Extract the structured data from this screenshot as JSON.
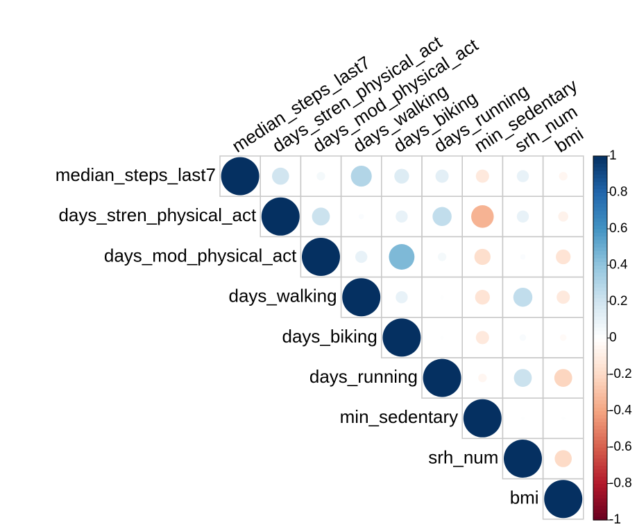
{
  "chart_data": {
    "type": "corrplot",
    "variables": [
      "median_steps_last7",
      "days_stren_physical_act",
      "days_mod_physical_act",
      "days_walking",
      "days_biking",
      "days_running",
      "min_sedentary",
      "srh_num",
      "bmi"
    ],
    "matrix": [
      [
        1,
        0.2,
        0.05,
        0.3,
        0.15,
        0.12,
        -0.12,
        0.1,
        -0.05
      ],
      [
        null,
        1,
        0.22,
        0.02,
        0.1,
        0.25,
        -0.35,
        0.1,
        -0.07
      ],
      [
        null,
        null,
        1,
        0.1,
        0.45,
        0.05,
        -0.18,
        0.02,
        -0.15
      ],
      [
        null,
        null,
        null,
        1,
        0.1,
        0.01,
        -0.15,
        0.25,
        -0.12
      ],
      [
        null,
        null,
        null,
        null,
        1,
        0.01,
        -0.12,
        0.03,
        -0.03
      ],
      [
        null,
        null,
        null,
        null,
        null,
        1,
        -0.05,
        0.22,
        -0.22
      ],
      [
        null,
        null,
        null,
        null,
        null,
        null,
        1,
        0.01,
        0.01
      ],
      [
        null,
        null,
        null,
        null,
        null,
        null,
        null,
        1,
        -0.2
      ],
      [
        null,
        null,
        null,
        null,
        null,
        null,
        null,
        null,
        1
      ]
    ],
    "clim": [
      -1,
      1
    ],
    "cticks": [
      1,
      0.8,
      0.6,
      0.4,
      0.2,
      0,
      -0.2,
      -0.4,
      -0.6,
      -0.8,
      -1
    ],
    "colors": [
      "#67001F",
      "#B2182B",
      "#D6604D",
      "#F4A582",
      "#FDDBC7",
      "#FFFFFF",
      "#D1E5F0",
      "#92C5DE",
      "#4393C3",
      "#2166AC",
      "#053061"
    ]
  }
}
